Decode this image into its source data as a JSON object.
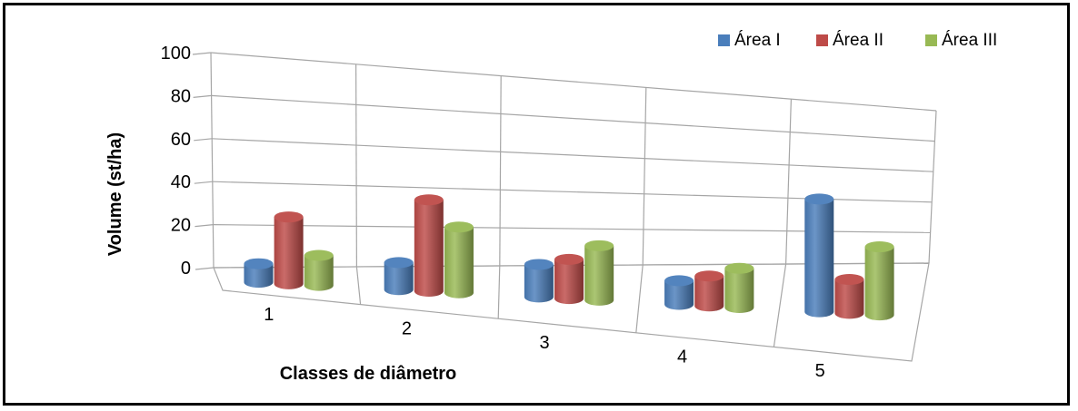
{
  "chart_data": {
    "type": "bar",
    "style": "3d-cylinder",
    "categories": [
      "1",
      "2",
      "3",
      "4",
      "5"
    ],
    "series": [
      {
        "name": "Área I",
        "color": "#4A7EBB",
        "values": [
          9,
          14,
          18,
          14,
          72
        ]
      },
      {
        "name": "Área II",
        "color": "#BE4B48",
        "values": [
          33,
          48,
          22,
          18,
          22
        ]
      },
      {
        "name": "Área III",
        "color": "#98B954",
        "values": [
          15,
          35,
          31,
          24,
          45
        ]
      }
    ],
    "xlabel": "Classes de diâmetro",
    "ylabel": "Volume (st/ha)",
    "ylim": [
      0,
      100
    ],
    "yticks": [
      0,
      20,
      40,
      60,
      80,
      100
    ],
    "grid": true,
    "legend": "top-right"
  }
}
